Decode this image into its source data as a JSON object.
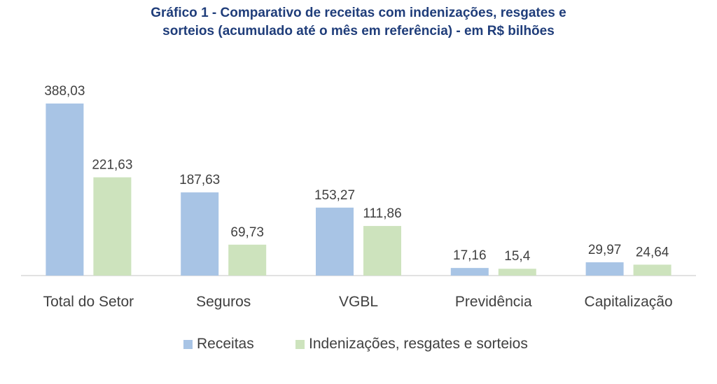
{
  "chart_data": {
    "type": "bar",
    "title_line1": "Gráfico 1 - Comparativo de receitas com indenizações, resgates e",
    "title_line2": "sorteios (acumulado até o mês em referência) - em R$ bilhões",
    "categories": [
      "Total do Setor",
      "Seguros",
      "VGBL",
      "Previdência",
      "Capitalização"
    ],
    "series": [
      {
        "name": "Receitas",
        "color": "#a8c4e5",
        "values": [
          388.03,
          187.63,
          153.27,
          17.16,
          29.97
        ],
        "labels": [
          "388,03",
          "187,63",
          "153,27",
          "17,16",
          "29,97"
        ]
      },
      {
        "name": "Indenizações, resgates e sorteios",
        "color": "#cde3bd",
        "values": [
          221.63,
          69.73,
          111.86,
          15.4,
          24.64
        ],
        "labels": [
          "221,63",
          "69,73",
          "111,86",
          "15,4",
          "24,64"
        ]
      }
    ],
    "ylim": [
      0,
      388.03
    ],
    "grid": false,
    "legend_position": "bottom"
  }
}
